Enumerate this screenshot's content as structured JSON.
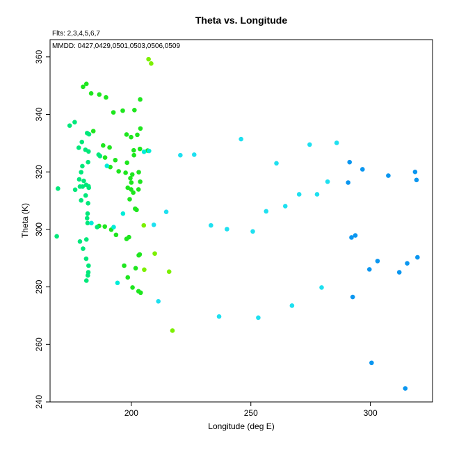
{
  "chart_data": {
    "type": "scatter",
    "title": "Theta vs. Longitude",
    "header_lines": [
      "Flts: 2,3,4,5,6,7",
      "MMDD: 0427,0429,0501,0503,0506,0509"
    ],
    "xlabel": "Longitude (deg E)",
    "ylabel": "Theta (K)",
    "xlim": [
      166,
      326
    ],
    "ylim": [
      240,
      366
    ],
    "xticks": [
      200,
      250,
      300
    ],
    "yticks": [
      240,
      260,
      280,
      300,
      320,
      340,
      360
    ],
    "grid": false,
    "legend": "none",
    "colors": {
      "lime": "#7cf000",
      "green": "#1ee61e",
      "spring": "#00e87a",
      "aqua": "#00ecd8",
      "cyan": "#1ee0f0",
      "azure": "#0a96f0"
    },
    "points": [
      {
        "x": 207.2,
        "y": 359.2,
        "c": "lime"
      },
      {
        "x": 208.3,
        "y": 357.7,
        "c": "lime"
      },
      {
        "x": 209.8,
        "y": 291.6,
        "c": "lime"
      },
      {
        "x": 205.2,
        "y": 301.4,
        "c": "lime"
      },
      {
        "x": 205.4,
        "y": 286.0,
        "c": "lime"
      },
      {
        "x": 215.8,
        "y": 285.3,
        "c": "lime"
      },
      {
        "x": 217.2,
        "y": 264.8,
        "c": "lime"
      },
      {
        "x": 181.2,
        "y": 350.6,
        "c": "green"
      },
      {
        "x": 179.8,
        "y": 349.6,
        "c": "green"
      },
      {
        "x": 183.2,
        "y": 347.3,
        "c": "green"
      },
      {
        "x": 186.6,
        "y": 346.9,
        "c": "green"
      },
      {
        "x": 189.4,
        "y": 345.9,
        "c": "green"
      },
      {
        "x": 203.7,
        "y": 345.2,
        "c": "green"
      },
      {
        "x": 196.4,
        "y": 341.3,
        "c": "green"
      },
      {
        "x": 201.3,
        "y": 341.5,
        "c": "green"
      },
      {
        "x": 192.5,
        "y": 340.7,
        "c": "green"
      },
      {
        "x": 203.8,
        "y": 335.1,
        "c": "green"
      },
      {
        "x": 184.1,
        "y": 334.2,
        "c": "green"
      },
      {
        "x": 202.5,
        "y": 332.9,
        "c": "green"
      },
      {
        "x": 198.0,
        "y": 333.0,
        "c": "green"
      },
      {
        "x": 199.9,
        "y": 332.1,
        "c": "green"
      },
      {
        "x": 188.2,
        "y": 329.2,
        "c": "green"
      },
      {
        "x": 190.9,
        "y": 328.5,
        "c": "green"
      },
      {
        "x": 203.6,
        "y": 328.0,
        "c": "green"
      },
      {
        "x": 206.8,
        "y": 327.4,
        "c": "green"
      },
      {
        "x": 201.0,
        "y": 327.5,
        "c": "green"
      },
      {
        "x": 201.1,
        "y": 325.8,
        "c": "green"
      },
      {
        "x": 189.0,
        "y": 325.0,
        "c": "green"
      },
      {
        "x": 193.3,
        "y": 324.1,
        "c": "green"
      },
      {
        "x": 198.2,
        "y": 323.2,
        "c": "green"
      },
      {
        "x": 191.2,
        "y": 321.7,
        "c": "green"
      },
      {
        "x": 194.7,
        "y": 320.2,
        "c": "green"
      },
      {
        "x": 197.6,
        "y": 319.7,
        "c": "green"
      },
      {
        "x": 203.1,
        "y": 319.9,
        "c": "green"
      },
      {
        "x": 200.4,
        "y": 319.1,
        "c": "green"
      },
      {
        "x": 199.6,
        "y": 317.8,
        "c": "green"
      },
      {
        "x": 203.7,
        "y": 316.6,
        "c": "green"
      },
      {
        "x": 200.0,
        "y": 316.3,
        "c": "green"
      },
      {
        "x": 198.5,
        "y": 314.5,
        "c": "green"
      },
      {
        "x": 203.0,
        "y": 313.9,
        "c": "green"
      },
      {
        "x": 199.9,
        "y": 313.9,
        "c": "green"
      },
      {
        "x": 200.8,
        "y": 312.8,
        "c": "green"
      },
      {
        "x": 199.3,
        "y": 310.5,
        "c": "green"
      },
      {
        "x": 201.6,
        "y": 307.2,
        "c": "green"
      },
      {
        "x": 202.2,
        "y": 306.8,
        "c": "green"
      },
      {
        "x": 186.5,
        "y": 301.2,
        "c": "green"
      },
      {
        "x": 188.9,
        "y": 301.0,
        "c": "green"
      },
      {
        "x": 191.6,
        "y": 299.9,
        "c": "green"
      },
      {
        "x": 193.6,
        "y": 298.1,
        "c": "green"
      },
      {
        "x": 199.0,
        "y": 297.3,
        "c": "green"
      },
      {
        "x": 198.0,
        "y": 296.7,
        "c": "green"
      },
      {
        "x": 203.5,
        "y": 291.3,
        "c": "green"
      },
      {
        "x": 203.1,
        "y": 291.0,
        "c": "green"
      },
      {
        "x": 197.0,
        "y": 287.4,
        "c": "green"
      },
      {
        "x": 201.8,
        "y": 286.5,
        "c": "green"
      },
      {
        "x": 198.5,
        "y": 283.3,
        "c": "green"
      },
      {
        "x": 200.5,
        "y": 279.8,
        "c": "green"
      },
      {
        "x": 203.0,
        "y": 278.5,
        "c": "green"
      },
      {
        "x": 203.9,
        "y": 278.0,
        "c": "green"
      },
      {
        "x": 176.3,
        "y": 337.3,
        "c": "spring"
      },
      {
        "x": 174.2,
        "y": 336.1,
        "c": "spring"
      },
      {
        "x": 181.5,
        "y": 333.5,
        "c": "spring"
      },
      {
        "x": 182.3,
        "y": 333.1,
        "c": "spring"
      },
      {
        "x": 179.3,
        "y": 330.4,
        "c": "spring"
      },
      {
        "x": 178.0,
        "y": 328.4,
        "c": "spring"
      },
      {
        "x": 180.8,
        "y": 327.7,
        "c": "spring"
      },
      {
        "x": 182.1,
        "y": 327.1,
        "c": "spring"
      },
      {
        "x": 186.3,
        "y": 326.0,
        "c": "spring"
      },
      {
        "x": 186.9,
        "y": 325.5,
        "c": "spring"
      },
      {
        "x": 181.9,
        "y": 323.4,
        "c": "spring"
      },
      {
        "x": 179.5,
        "y": 322.0,
        "c": "spring"
      },
      {
        "x": 179.0,
        "y": 319.9,
        "c": "spring"
      },
      {
        "x": 178.2,
        "y": 317.4,
        "c": "spring"
      },
      {
        "x": 180.1,
        "y": 316.9,
        "c": "spring"
      },
      {
        "x": 181.1,
        "y": 315.5,
        "c": "spring"
      },
      {
        "x": 178.5,
        "y": 314.9,
        "c": "spring"
      },
      {
        "x": 179.6,
        "y": 314.9,
        "c": "spring"
      },
      {
        "x": 182.1,
        "y": 315.0,
        "c": "spring"
      },
      {
        "x": 182.2,
        "y": 314.5,
        "c": "spring"
      },
      {
        "x": 169.3,
        "y": 314.2,
        "c": "spring"
      },
      {
        "x": 176.5,
        "y": 313.8,
        "c": "spring"
      },
      {
        "x": 180.9,
        "y": 311.8,
        "c": "spring"
      },
      {
        "x": 179.0,
        "y": 310.1,
        "c": "spring"
      },
      {
        "x": 181.9,
        "y": 309.1,
        "c": "spring"
      },
      {
        "x": 181.7,
        "y": 305.5,
        "c": "spring"
      },
      {
        "x": 181.5,
        "y": 303.9,
        "c": "spring"
      },
      {
        "x": 181.7,
        "y": 302.2,
        "c": "spring"
      },
      {
        "x": 185.7,
        "y": 300.8,
        "c": "spring"
      },
      {
        "x": 168.8,
        "y": 297.6,
        "c": "spring"
      },
      {
        "x": 181.2,
        "y": 296.5,
        "c": "spring"
      },
      {
        "x": 178.5,
        "y": 295.8,
        "c": "spring"
      },
      {
        "x": 179.8,
        "y": 293.3,
        "c": "spring"
      },
      {
        "x": 181.1,
        "y": 289.8,
        "c": "spring"
      },
      {
        "x": 182.1,
        "y": 287.4,
        "c": "spring"
      },
      {
        "x": 182.0,
        "y": 285.1,
        "c": "spring"
      },
      {
        "x": 181.8,
        "y": 284.0,
        "c": "spring"
      },
      {
        "x": 181.2,
        "y": 282.2,
        "c": "spring"
      },
      {
        "x": 183.3,
        "y": 302.2,
        "c": "aqua"
      },
      {
        "x": 192.6,
        "y": 300.8,
        "c": "aqua"
      },
      {
        "x": 189.8,
        "y": 322.1,
        "c": "aqua"
      },
      {
        "x": 205.3,
        "y": 327.0,
        "c": "aqua"
      },
      {
        "x": 207.4,
        "y": 327.3,
        "c": "aqua"
      },
      {
        "x": 194.2,
        "y": 281.4,
        "c": "aqua"
      },
      {
        "x": 196.5,
        "y": 305.5,
        "c": "aqua"
      },
      {
        "x": 245.9,
        "y": 331.4,
        "c": "cyan"
      },
      {
        "x": 274.6,
        "y": 329.5,
        "c": "cyan"
      },
      {
        "x": 285.9,
        "y": 330.1,
        "c": "cyan"
      },
      {
        "x": 220.5,
        "y": 325.8,
        "c": "cyan"
      },
      {
        "x": 226.3,
        "y": 326.0,
        "c": "cyan"
      },
      {
        "x": 260.7,
        "y": 323.0,
        "c": "cyan"
      },
      {
        "x": 282.1,
        "y": 316.6,
        "c": "cyan"
      },
      {
        "x": 270.2,
        "y": 312.2,
        "c": "cyan"
      },
      {
        "x": 277.7,
        "y": 312.2,
        "c": "cyan"
      },
      {
        "x": 264.4,
        "y": 308.1,
        "c": "cyan"
      },
      {
        "x": 256.4,
        "y": 306.3,
        "c": "cyan"
      },
      {
        "x": 214.6,
        "y": 306.1,
        "c": "cyan"
      },
      {
        "x": 209.4,
        "y": 301.6,
        "c": "cyan"
      },
      {
        "x": 233.3,
        "y": 301.4,
        "c": "cyan"
      },
      {
        "x": 240.0,
        "y": 300.1,
        "c": "cyan"
      },
      {
        "x": 250.8,
        "y": 299.3,
        "c": "cyan"
      },
      {
        "x": 211.3,
        "y": 275.0,
        "c": "cyan"
      },
      {
        "x": 279.6,
        "y": 279.8,
        "c": "cyan"
      },
      {
        "x": 267.2,
        "y": 273.5,
        "c": "cyan"
      },
      {
        "x": 236.7,
        "y": 269.7,
        "c": "cyan"
      },
      {
        "x": 253.1,
        "y": 269.3,
        "c": "cyan"
      },
      {
        "x": 291.3,
        "y": 323.4,
        "c": "azure"
      },
      {
        "x": 296.7,
        "y": 320.9,
        "c": "azure"
      },
      {
        "x": 318.7,
        "y": 320.0,
        "c": "azure"
      },
      {
        "x": 307.5,
        "y": 318.7,
        "c": "azure"
      },
      {
        "x": 319.3,
        "y": 317.2,
        "c": "azure"
      },
      {
        "x": 290.7,
        "y": 316.3,
        "c": "azure"
      },
      {
        "x": 293.7,
        "y": 297.9,
        "c": "azure"
      },
      {
        "x": 292.1,
        "y": 297.2,
        "c": "azure"
      },
      {
        "x": 319.7,
        "y": 290.3,
        "c": "azure"
      },
      {
        "x": 303.0,
        "y": 289.0,
        "c": "azure"
      },
      {
        "x": 315.4,
        "y": 288.2,
        "c": "azure"
      },
      {
        "x": 299.6,
        "y": 286.1,
        "c": "azure"
      },
      {
        "x": 312.1,
        "y": 285.1,
        "c": "azure"
      },
      {
        "x": 292.6,
        "y": 276.5,
        "c": "azure"
      },
      {
        "x": 300.5,
        "y": 253.6,
        "c": "azure"
      },
      {
        "x": 314.6,
        "y": 244.7,
        "c": "azure"
      }
    ]
  }
}
